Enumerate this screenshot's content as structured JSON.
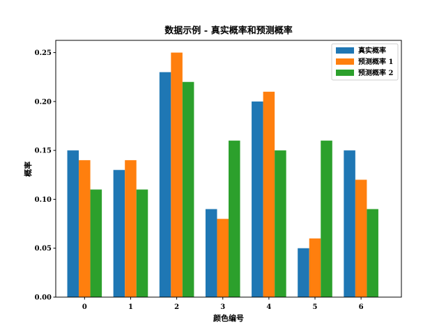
{
  "chart_data": {
    "type": "bar",
    "title": "数据示例 - 真实概率和预测概率",
    "xlabel": "颜色编号",
    "ylabel": "概率",
    "categories": [
      "0",
      "1",
      "2",
      "3",
      "4",
      "5",
      "6"
    ],
    "series": [
      {
        "name": "真实概率",
        "color": "#1f77b4",
        "values": [
          0.15,
          0.13,
          0.23,
          0.09,
          0.2,
          0.05,
          0.15
        ]
      },
      {
        "name": "预测概率 1",
        "color": "#ff7f0e",
        "values": [
          0.14,
          0.14,
          0.25,
          0.08,
          0.21,
          0.06,
          0.12
        ]
      },
      {
        "name": "预测概率 2",
        "color": "#2ca02c",
        "values": [
          0.11,
          0.11,
          0.22,
          0.16,
          0.15,
          0.16,
          0.09
        ]
      }
    ],
    "ylim": [
      0,
      0.2625
    ],
    "yticks": [
      "0.00",
      "0.05",
      "0.10",
      "0.15",
      "0.20",
      "0.25"
    ],
    "grid": false,
    "legend_position": "top-right"
  }
}
